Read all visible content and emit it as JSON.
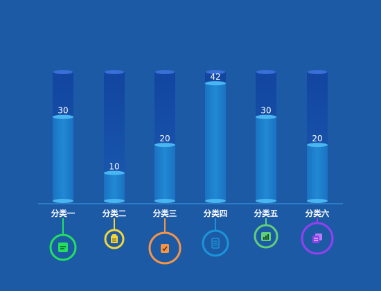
{
  "chart_data": {
    "type": "bar",
    "categories": [
      "分类一",
      "分类二",
      "分类三",
      "分类四",
      "分类五",
      "分类六"
    ],
    "values": [
      30,
      10,
      20,
      42,
      30,
      20
    ],
    "ylim": [
      0,
      46
    ],
    "grid": false,
    "title": "",
    "xlabel": "",
    "ylabel": ""
  },
  "icons": [
    {
      "name": "document-icon",
      "color": "#22e05f"
    },
    {
      "name": "clipboard-icon",
      "color": "#f4d63a"
    },
    {
      "name": "checklist-icon",
      "color": "#f59545"
    },
    {
      "name": "calculator-icon",
      "color": "#1b95d9"
    },
    {
      "name": "bar-chart-icon",
      "color": "#5fd07a"
    },
    {
      "name": "files-icon",
      "color": "#9340ef"
    }
  ],
  "colors": {
    "background": "#1d5aa6",
    "bar_track": "#114ea0",
    "bar_fill": "#1c7fcc",
    "bar_cap": "#49b6f2",
    "axis": "#3aa0ea"
  }
}
